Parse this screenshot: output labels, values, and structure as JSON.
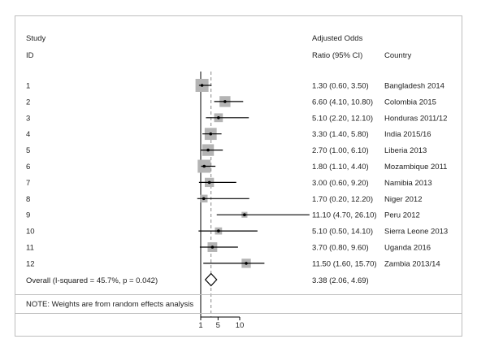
{
  "header": {
    "study_line1": "Study",
    "study_line2": "ID",
    "or_line1": "Adjusted Odds",
    "or_line2": "Ratio (95% CI)",
    "country": "Country"
  },
  "rows": [
    {
      "id": "1",
      "ci_text": "1.30 (0.60, 3.50)",
      "country": "Bangladesh 2014"
    },
    {
      "id": "2",
      "ci_text": "6.60 (4.10, 10.80)",
      "country": "Colombia 2015"
    },
    {
      "id": "3",
      "ci_text": "5.10 (2.20, 12.10)",
      "country": "Honduras 2011/12"
    },
    {
      "id": "4",
      "ci_text": "3.30 (1.40, 5.80)",
      "country": "India 2015/16"
    },
    {
      "id": "5",
      "ci_text": "2.70 (1.00, 6.10)",
      "country": "Liberia 2013"
    },
    {
      "id": "6",
      "ci_text": "1.80 (1.10, 4.40)",
      "country": "Mozambique 2011"
    },
    {
      "id": "7",
      "ci_text": "3.00 (0.60, 9.20)",
      "country": "Namibia 2013"
    },
    {
      "id": "8",
      "ci_text": "1.70 (0.20, 12.20)",
      "country": "Niger 2012"
    },
    {
      "id": "9",
      "ci_text": "11.10 (4.70, 26.10)",
      "country": "Peru 2012"
    },
    {
      "id": "10",
      "ci_text": "5.10 (0.50, 14.10)",
      "country": "Sierra Leone 2013"
    },
    {
      "id": "11",
      "ci_text": "3.70 (0.80, 9.60)",
      "country": "Uganda 2016"
    },
    {
      "id": "12",
      "ci_text": "11.50 (1.60, 15.70)",
      "country": "Zambia 2013/14"
    }
  ],
  "overall": {
    "label": "Overall  (I-squared = 45.7%, p = 0.042)",
    "ci_text": "3.38 (2.06, 4.69)"
  },
  "note": "NOTE: Weights are from random effects analysis",
  "colors": {
    "marker_box": "#b4b4b4",
    "line": "#000000",
    "reference_dashed": "#888888"
  },
  "chart_data": {
    "type": "forest",
    "null_value": 1,
    "xticks": [
      1,
      5,
      10
    ],
    "xtick_labels": [
      "1",
      "5",
      "10"
    ],
    "xlim": [
      -0.3,
      26.1
    ],
    "studies": [
      {
        "id": "1",
        "or": 1.3,
        "lo": 0.6,
        "hi": 3.5,
        "weight": 1.0
      },
      {
        "id": "2",
        "or": 6.6,
        "lo": 4.1,
        "hi": 10.8,
        "weight": 0.7
      },
      {
        "id": "3",
        "or": 5.1,
        "lo": 2.2,
        "hi": 12.1,
        "weight": 0.45
      },
      {
        "id": "4",
        "or": 3.3,
        "lo": 1.4,
        "hi": 5.8,
        "weight": 0.85
      },
      {
        "id": "5",
        "or": 2.7,
        "lo": 1.0,
        "hi": 6.1,
        "weight": 0.8
      },
      {
        "id": "6",
        "or": 1.8,
        "lo": 1.1,
        "hi": 4.4,
        "weight": 1.0
      },
      {
        "id": "7",
        "or": 3.0,
        "lo": 0.6,
        "hi": 9.2,
        "weight": 0.5
      },
      {
        "id": "8",
        "or": 1.7,
        "lo": 0.2,
        "hi": 12.2,
        "weight": 0.35
      },
      {
        "id": "9",
        "or": 11.1,
        "lo": 4.7,
        "hi": 26.1,
        "weight": 0.2
      },
      {
        "id": "10",
        "or": 5.1,
        "lo": 0.5,
        "hi": 14.1,
        "weight": 0.3
      },
      {
        "id": "11",
        "or": 3.7,
        "lo": 0.8,
        "hi": 9.6,
        "weight": 0.55
      },
      {
        "id": "12",
        "or": 11.5,
        "lo": 1.6,
        "hi": 15.7,
        "weight": 0.5
      }
    ],
    "overall": {
      "or": 3.38,
      "lo": 2.06,
      "hi": 4.69
    }
  }
}
